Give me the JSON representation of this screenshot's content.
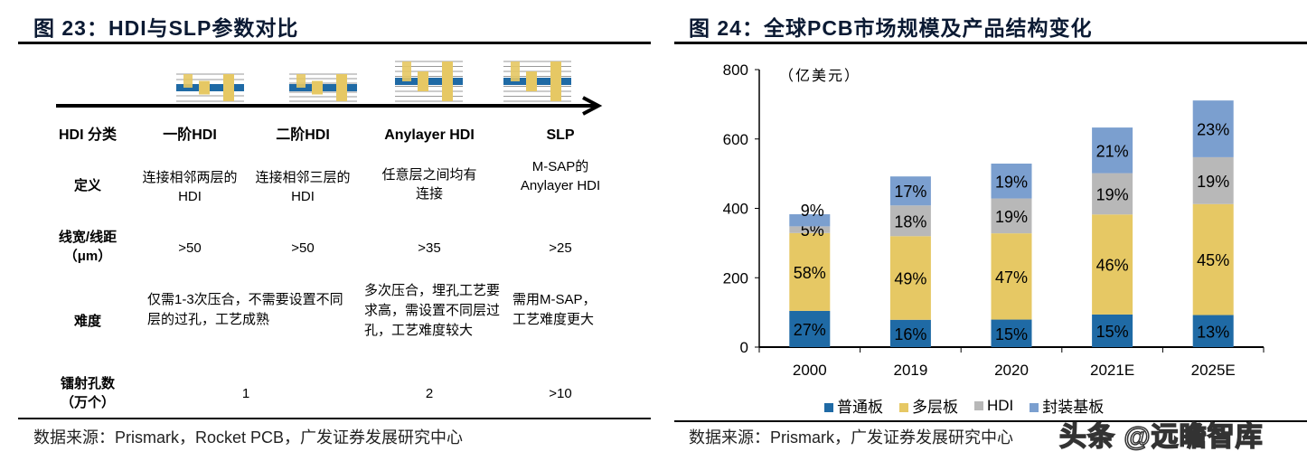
{
  "left": {
    "title": "图 23：HDI与SLP参数对比",
    "columns": [
      "HDI 分类",
      "一阶HDI",
      "二阶HDI",
      "Anylayer HDI",
      "SLP"
    ],
    "rows": [
      {
        "label": "定义",
        "values": [
          "连接相邻两层的HDI",
          "连接相邻三层的HDI",
          "任意层之间均有连接",
          "M-SAP的Anylayer HDI"
        ]
      },
      {
        "label": "线宽/线距（μm）",
        "values": [
          ">50",
          ">50",
          ">35",
          ">25"
        ]
      },
      {
        "label": "难度",
        "values": [
          "仅需1-3次压合，不需要设置不同层的过孔，工艺成熟",
          "多次压合，埋孔工艺要求高，需设置不同层过孔，工艺难度较大",
          "需用M-SAP，工艺难度更大"
        ]
      },
      {
        "label": "镭射孔数（万个）",
        "values": [
          "1",
          "2",
          ">10"
        ]
      }
    ],
    "source": "数据来源：Prismark，Rocket PCB，广发证券发展研究中心"
  },
  "right": {
    "title": "图 24：全球PCB市场规模及产品结构变化",
    "source": "数据来源：Prismark，广发证券发展研究中心",
    "watermark": "头条 @远瞻智库"
  },
  "chart_data": {
    "type": "bar",
    "stacked": true,
    "unit_label": "（亿美元）",
    "categories": [
      "2000",
      "2019",
      "2020",
      "2021E",
      "2025E"
    ],
    "totals": [
      383,
      492,
      529,
      633,
      711
    ],
    "ylim": [
      0,
      800
    ],
    "yticks": [
      0,
      200,
      400,
      600,
      800
    ],
    "legend_position": "bottom",
    "series": [
      {
        "name": "普通板",
        "color": "#1f6aa5",
        "shares": [
          27,
          16,
          15,
          15,
          13
        ],
        "labels": [
          "27%",
          "16%",
          "15%",
          "15%",
          "13%"
        ]
      },
      {
        "name": "多层板",
        "color": "#e6c864",
        "shares": [
          58,
          49,
          47,
          46,
          45
        ],
        "labels": [
          "58%",
          "49%",
          "47%",
          "46%",
          "45%"
        ]
      },
      {
        "name": "HDI",
        "color": "#b8b8b8",
        "shares": [
          5,
          18,
          19,
          19,
          19
        ],
        "labels": [
          "5%",
          "18%",
          "19%",
          "19%",
          "19%"
        ]
      },
      {
        "name": "封装基板",
        "color": "#7b9fcf",
        "shares": [
          9,
          17,
          19,
          21,
          23
        ],
        "labels": [
          "9%",
          "17%",
          "19%",
          "21%",
          "23%"
        ]
      }
    ]
  }
}
